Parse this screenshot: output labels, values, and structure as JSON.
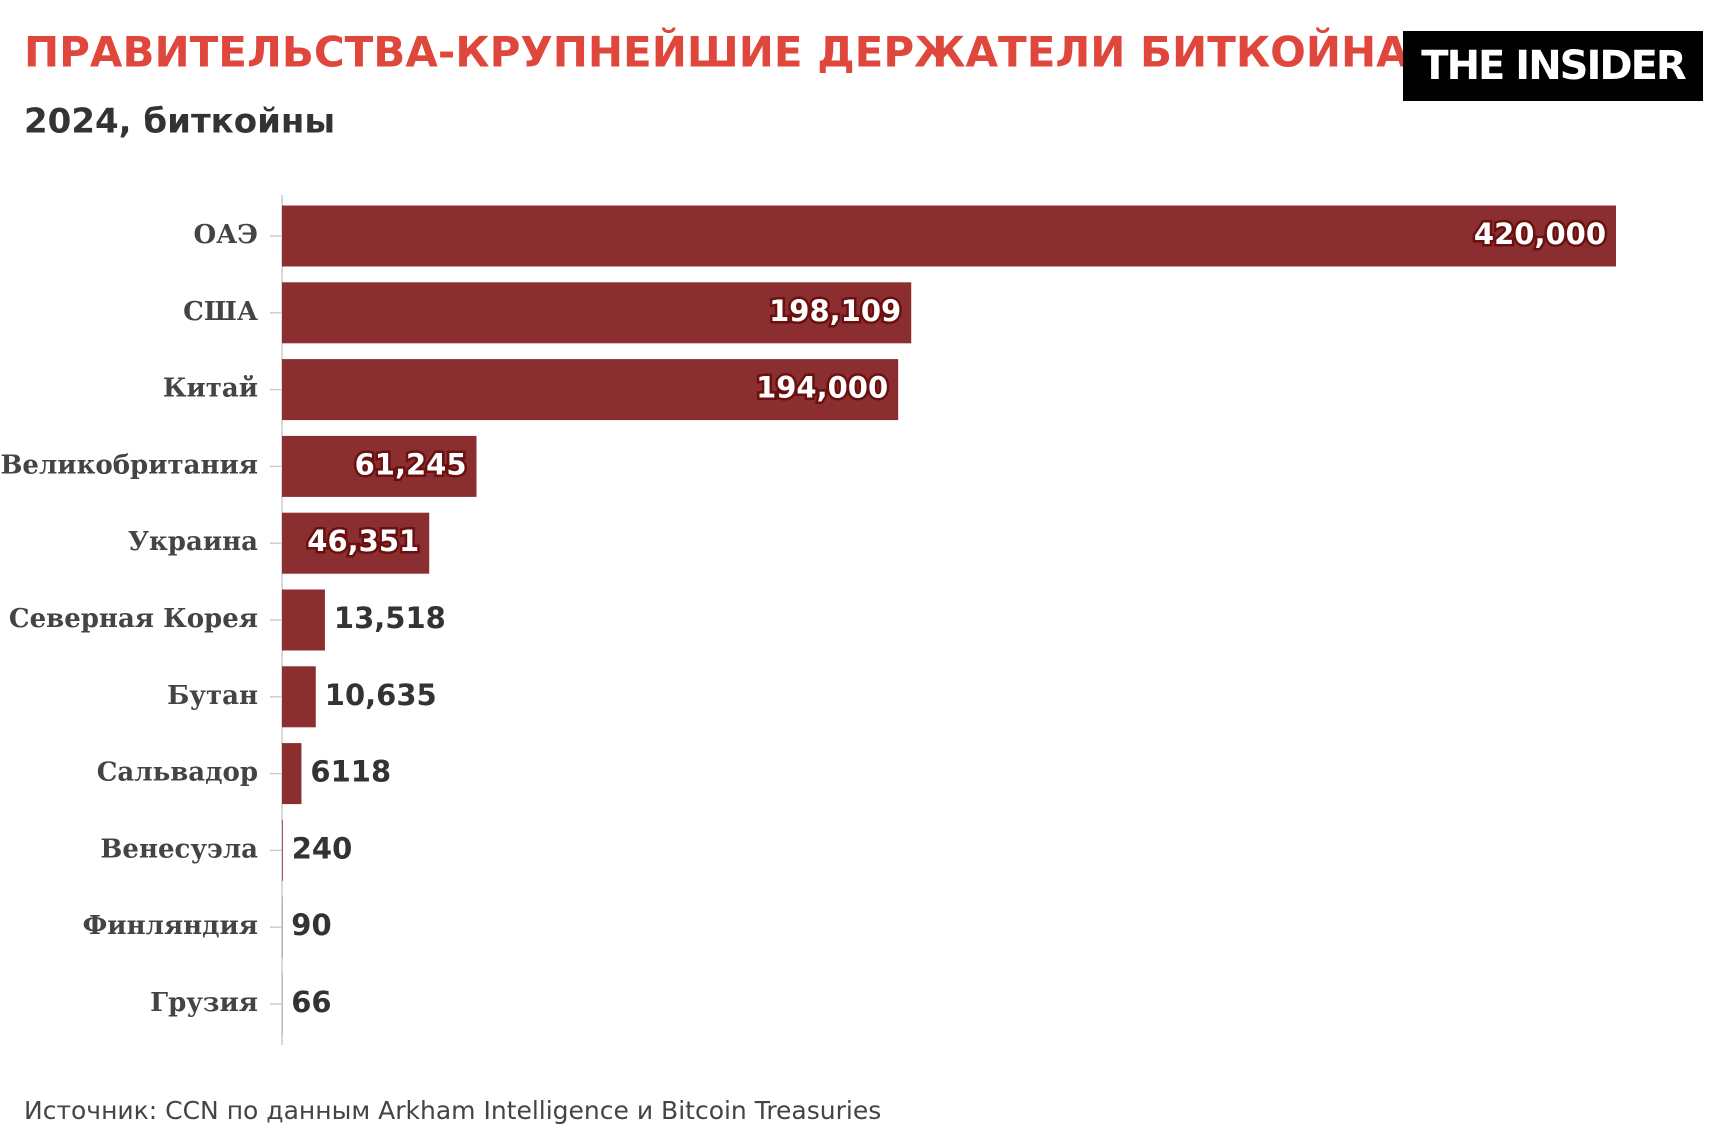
{
  "chart_data": {
    "type": "hbar",
    "title": "ПРАВИТЕЛЬСТВА-КРУПНЕЙШИЕ ДЕРЖАТЕЛИ БИТКОЙНА",
    "subtitle": "2024, биткойны",
    "logo": "THE INSIDER",
    "categories": [
      "ОАЭ",
      "США",
      "Китай",
      "Великобритания",
      "Украина",
      "Северная Корея",
      "Бутан",
      "Сальвадор",
      "Венесуэла",
      "Финляндия",
      "Грузия"
    ],
    "values": [
      420000,
      198109,
      194000,
      61245,
      46351,
      13518,
      10635,
      6118,
      240,
      90,
      66
    ],
    "value_labels": [
      "420,000",
      "198,109",
      "194,000",
      "61,245",
      "46,351",
      "13,518",
      "10,635",
      "6118",
      "240",
      "90",
      "66"
    ],
    "color": "#8b2e2f",
    "source": "Источник: CCN по данным Arkham Intelligence и Bitcoin Treasuries"
  }
}
